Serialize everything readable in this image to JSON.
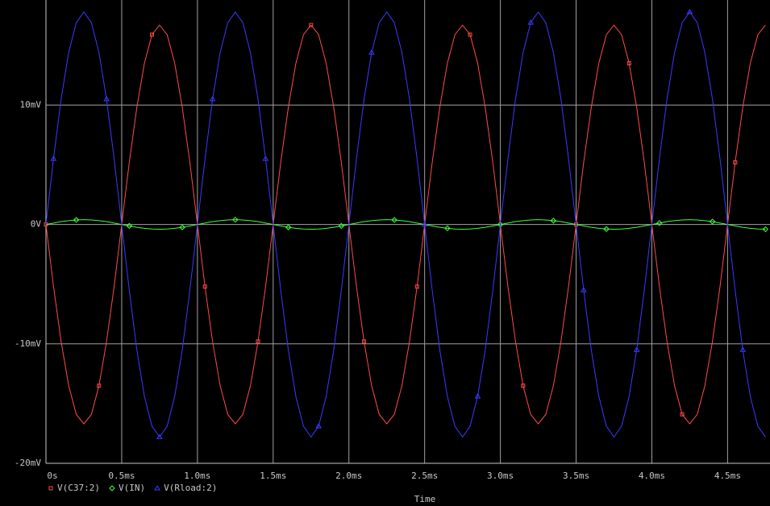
{
  "chart_data": {
    "type": "line",
    "x_label": "Time",
    "x": [
      0,
      0.05,
      0.1,
      0.15,
      0.2,
      0.25,
      0.3,
      0.35,
      0.4,
      0.45,
      0.5,
      0.55,
      0.6,
      0.65,
      0.7,
      0.75,
      0.8,
      0.85,
      0.9,
      0.95,
      1,
      1.05,
      1.1,
      1.15,
      1.2,
      1.25,
      1.3,
      1.35,
      1.4,
      1.45,
      1.5,
      1.55,
      1.6,
      1.65,
      1.7,
      1.75,
      1.8,
      1.85,
      1.9,
      1.95,
      2,
      2.05,
      2.1,
      2.15,
      2.2,
      2.25,
      2.3,
      2.35,
      2.4,
      2.45,
      2.5,
      2.55,
      2.6,
      2.65,
      2.7,
      2.75,
      2.8,
      2.85,
      2.9,
      2.95,
      3,
      3.05,
      3.1,
      3.15,
      3.2,
      3.25,
      3.3,
      3.35,
      3.4,
      3.45,
      3.5,
      3.55,
      3.6,
      3.65,
      3.7,
      3.75,
      3.8,
      3.85,
      3.9,
      3.95,
      4,
      4.05,
      4.1,
      4.15,
      4.2,
      4.25,
      4.3,
      4.35,
      4.4,
      4.45,
      4.5,
      4.55,
      4.6,
      4.65,
      4.7,
      4.75
    ],
    "series": [
      {
        "name": "V(C37:2)",
        "color": "#ff4a4a",
        "marker": "square",
        "values": [
          0,
          -5.2,
          -9.8,
          -13.5,
          -15.9,
          -16.7,
          -15.9,
          -13.5,
          -9.8,
          -5.2,
          0,
          5.2,
          9.8,
          13.5,
          15.9,
          16.7,
          15.9,
          13.5,
          9.8,
          5.2,
          0,
          -5.2,
          -9.8,
          -13.5,
          -15.9,
          -16.7,
          -15.9,
          -13.5,
          -9.8,
          -5.2,
          0,
          5.2,
          9.8,
          13.5,
          15.9,
          16.7,
          15.9,
          13.5,
          9.8,
          5.2,
          0,
          -5.2,
          -9.8,
          -13.5,
          -15.9,
          -16.7,
          -15.9,
          -13.5,
          -9.8,
          -5.2,
          0,
          5.2,
          9.8,
          13.5,
          15.9,
          16.7,
          15.9,
          13.5,
          9.8,
          5.2,
          0,
          -5.2,
          -9.8,
          -13.5,
          -15.9,
          -16.7,
          -15.9,
          -13.5,
          -9.8,
          -5.2,
          0,
          5.2,
          9.8,
          13.5,
          15.9,
          16.7,
          15.9,
          13.5,
          9.8,
          5.2,
          0,
          -5.2,
          -9.8,
          -13.5,
          -15.9,
          -16.7,
          -15.9,
          -13.5,
          -9.8,
          -5.2,
          0,
          5.2,
          9.8,
          13.5,
          15.9,
          16.7
        ]
      },
      {
        "name": "V(IN)",
        "color": "#40ff40",
        "marker": "diamond",
        "values": [
          0,
          0.12,
          0.24,
          0.32,
          0.38,
          0.4,
          0.38,
          0.32,
          0.24,
          0.12,
          0,
          -0.12,
          -0.24,
          -0.32,
          -0.38,
          -0.4,
          -0.38,
          -0.32,
          -0.24,
          -0.12,
          0,
          0.12,
          0.24,
          0.32,
          0.38,
          0.4,
          0.38,
          0.32,
          0.24,
          0.12,
          0,
          -0.12,
          -0.24,
          -0.32,
          -0.38,
          -0.4,
          -0.38,
          -0.32,
          -0.24,
          -0.12,
          0,
          0.12,
          0.24,
          0.32,
          0.38,
          0.4,
          0.38,
          0.32,
          0.24,
          0.12,
          0,
          -0.12,
          -0.24,
          -0.32,
          -0.38,
          -0.4,
          -0.38,
          -0.32,
          -0.24,
          -0.12,
          0,
          0.12,
          0.24,
          0.32,
          0.38,
          0.4,
          0.38,
          0.32,
          0.24,
          0.12,
          0,
          -0.12,
          -0.24,
          -0.32,
          -0.38,
          -0.4,
          -0.38,
          -0.32,
          -0.24,
          -0.12,
          0,
          0.12,
          0.24,
          0.32,
          0.38,
          0.4,
          0.38,
          0.32,
          0.24,
          0.12,
          0,
          -0.12,
          -0.24,
          -0.32,
          -0.38,
          -0.4
        ]
      },
      {
        "name": "V(Rload:2)",
        "color": "#3a3aff",
        "marker": "triangle",
        "values": [
          0,
          5.5,
          10.5,
          14.4,
          16.9,
          17.8,
          16.9,
          14.4,
          10.5,
          5.5,
          0,
          -5.5,
          -10.5,
          -14.4,
          -16.9,
          -17.8,
          -16.9,
          -14.4,
          -10.5,
          -5.5,
          0,
          5.5,
          10.5,
          14.4,
          16.9,
          17.8,
          16.9,
          14.4,
          10.5,
          5.5,
          0,
          -5.5,
          -10.5,
          -14.4,
          -16.9,
          -17.8,
          -16.9,
          -14.4,
          -10.5,
          -5.5,
          0,
          5.5,
          10.5,
          14.4,
          16.9,
          17.8,
          16.9,
          14.4,
          10.5,
          5.5,
          0,
          -5.5,
          -10.5,
          -14.4,
          -16.9,
          -17.8,
          -16.9,
          -14.4,
          -10.5,
          -5.5,
          0,
          5.5,
          10.5,
          14.4,
          16.9,
          17.8,
          16.9,
          14.4,
          10.5,
          5.5,
          0,
          -5.5,
          -10.5,
          -14.4,
          -16.9,
          -17.8,
          -16.9,
          -14.4,
          -10.5,
          -5.5,
          0,
          5.5,
          10.5,
          14.4,
          16.9,
          17.8,
          16.9,
          14.4,
          10.5,
          5.5,
          0,
          -5.5,
          -10.5,
          -14.4,
          -16.9,
          -17.8
        ]
      }
    ],
    "xlim": [
      0,
      4.78
    ],
    "ylim": [
      -20,
      18.8
    ],
    "xticks": [
      {
        "value": 0,
        "label": "0s"
      },
      {
        "value": 0.5,
        "label": "0.5ms"
      },
      {
        "value": 1,
        "label": "1.0ms"
      },
      {
        "value": 1.5,
        "label": "1.5ms"
      },
      {
        "value": 2,
        "label": "2.0ms"
      },
      {
        "value": 2.5,
        "label": "2.5ms"
      },
      {
        "value": 3,
        "label": "3.0ms"
      },
      {
        "value": 3.5,
        "label": "3.5ms"
      },
      {
        "value": 4,
        "label": "4.0ms"
      },
      {
        "value": 4.5,
        "label": "4.5ms"
      }
    ],
    "yticks": [
      {
        "value": -20,
        "label": "-20mV"
      },
      {
        "value": -10,
        "label": "-10mV"
      },
      {
        "value": 0,
        "label": "0V"
      },
      {
        "value": 10,
        "label": "10mV"
      }
    ],
    "grid": true
  }
}
